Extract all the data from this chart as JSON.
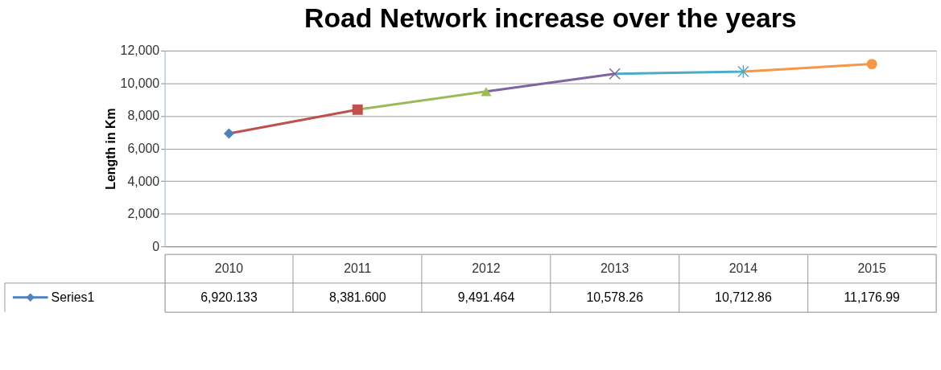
{
  "chart_data": {
    "type": "line",
    "title": "Road Network increase over the years",
    "ylabel": "Length in Km",
    "categories": [
      "2010",
      "2011",
      "2012",
      "2013",
      "2014",
      "2015"
    ],
    "series": [
      {
        "name": "Series1",
        "color": "#4f81bd",
        "colors": [
          "#4f81bd",
          "#c0504d",
          "#9bbb59",
          "#8064a2",
          "#4bacc6",
          "#f79646"
        ],
        "marker": [
          "diamond",
          "square",
          "triangle",
          "cross",
          "star",
          "circle"
        ],
        "values": [
          6920.133,
          8381.6,
          9491.464,
          10578.26,
          10712.86,
          11176.99
        ],
        "value_labels": [
          "6,920.133",
          "8,381.600",
          "9,491.464",
          "10,578.26",
          "10,712.86",
          "11,176.99"
        ]
      }
    ],
    "ylim": [
      0,
      12000
    ],
    "yticks": [
      0,
      {
        "value": 2000,
        "label": "2,000"
      },
      {
        "value": 4000,
        "label": "4,000"
      },
      {
        "value": 6000,
        "label": "6,000"
      },
      {
        "value": 8000,
        "label": "8,000"
      },
      {
        "value": 10000,
        "label": "10,000"
      },
      {
        "value": 12000,
        "label": "12,000"
      }
    ],
    "grid": "y",
    "legend": "bottom",
    "line_style": "solid"
  }
}
